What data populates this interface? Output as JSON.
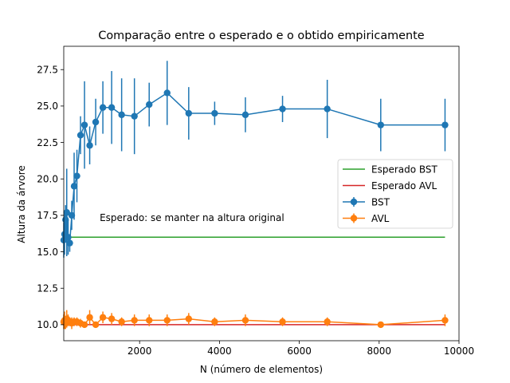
{
  "chart_data": {
    "type": "line",
    "title": "Comparação entre o esperado e o obtido empiricamente",
    "xlabel": "N (número de elementos)",
    "ylabel": "Altura da árvore",
    "xlim": [
      100,
      10000
    ],
    "ylim": [
      8.9,
      29.1
    ],
    "xticks": [
      2000,
      4000,
      6000,
      8000,
      10000
    ],
    "xtick_labels": [
      "2000",
      "4000",
      "6000",
      "8000",
      "10000"
    ],
    "yticks": [
      10.0,
      12.5,
      15.0,
      17.5,
      20.0,
      22.5,
      25.0,
      27.5
    ],
    "ytick_labels": [
      "10.0",
      "12.5",
      "15.0",
      "17.5",
      "20.0",
      "22.5",
      "25.0",
      "27.5"
    ],
    "grid": false,
    "legend_position": "center-right",
    "annotation": {
      "text": "Esperado: se manter na altura original",
      "x": 1000,
      "y": 17.1
    },
    "reference_lines": [
      {
        "name": "Esperado BST",
        "color": "#2ca02c",
        "x": [
          100,
          9650
        ],
        "y": [
          16.0,
          16.0
        ]
      },
      {
        "name": "Esperado AVL",
        "color": "#d62728",
        "x": [
          100,
          9650
        ],
        "y": [
          10.0,
          10.0
        ]
      }
    ],
    "series": [
      {
        "name": "BST",
        "color": "#1f77b4",
        "x": [
          100,
          120,
          145,
          175,
          210,
          250,
          300,
          360,
          430,
          520,
          620,
          750,
          900,
          1080,
          1300,
          1550,
          1870,
          2240,
          2690,
          3230,
          3880,
          4650,
          5580,
          6700,
          8040,
          9650
        ],
        "y": [
          15.8,
          16.2,
          17.2,
          17.7,
          16.0,
          15.6,
          17.5,
          19.5,
          20.2,
          23.0,
          23.7,
          22.3,
          23.9,
          24.9,
          24.9,
          24.4,
          24.3,
          25.1,
          25.9,
          24.5,
          24.5,
          24.4,
          24.8,
          24.8,
          23.7,
          23.7
        ],
        "err": [
          1.2,
          1.4,
          1.0,
          3.0,
          1.2,
          0.6,
          1.0,
          2.3,
          1.8,
          1.3,
          3.0,
          1.3,
          1.6,
          1.8,
          2.5,
          2.5,
          2.6,
          1.5,
          2.2,
          1.8,
          0.8,
          1.2,
          0.9,
          2.0,
          1.8,
          1.8
        ]
      },
      {
        "name": "AVL",
        "color": "#ff7f0e",
        "x": [
          100,
          120,
          145,
          175,
          210,
          250,
          300,
          360,
          430,
          520,
          620,
          750,
          900,
          1080,
          1300,
          1550,
          1870,
          2240,
          2690,
          3230,
          3880,
          4650,
          5580,
          6700,
          8040,
          9650
        ],
        "y": [
          10.2,
          10.3,
          10.1,
          10.4,
          10.3,
          10.2,
          10.1,
          10.2,
          10.2,
          10.1,
          10.0,
          10.5,
          10.0,
          10.5,
          10.4,
          10.2,
          10.3,
          10.3,
          10.3,
          10.4,
          10.2,
          10.3,
          10.2,
          10.2,
          10.0,
          10.3
        ],
        "err": [
          0.5,
          0.6,
          0.4,
          0.6,
          0.4,
          0.3,
          0.4,
          0.3,
          0.3,
          0.3,
          0.2,
          0.5,
          0.2,
          0.4,
          0.4,
          0.3,
          0.4,
          0.4,
          0.4,
          0.4,
          0.3,
          0.4,
          0.3,
          0.3,
          0.2,
          0.4
        ]
      }
    ]
  }
}
